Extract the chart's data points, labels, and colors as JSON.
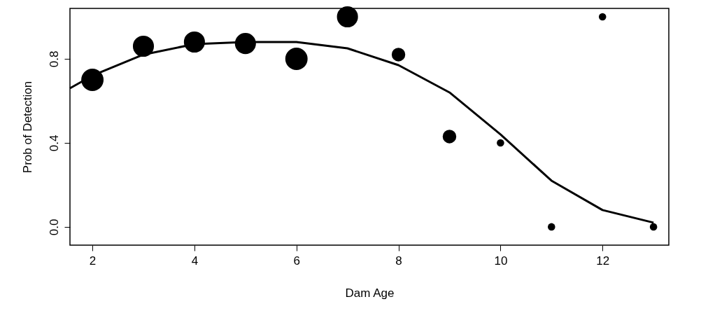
{
  "chart_data": {
    "type": "bubble",
    "xlabel": "Dam Age",
    "ylabel": "Prob of Detection",
    "xlim": [
      1.56,
      13.3
    ],
    "ylim": [
      -0.087,
      1.04
    ],
    "xticks": [
      2,
      4,
      6,
      8,
      10,
      12
    ],
    "yticks": [
      {
        "value": 0,
        "label": "0.0"
      },
      {
        "value": 0.4,
        "label": "0.4"
      },
      {
        "value": 0.8,
        "label": "0.8"
      }
    ],
    "grid": false,
    "legend": false,
    "series": [
      {
        "marker": "circle",
        "color": "#000000",
        "x": [
          2,
          3,
          4,
          5,
          6,
          7,
          8,
          9,
          10,
          11,
          12,
          13
        ],
        "values": [
          0.7,
          0.86,
          0.88,
          0.873,
          0.8,
          1.0,
          0.82,
          0.43,
          0.4,
          0.0,
          1.0,
          0.0
        ],
        "sizes": [
          1,
          0.89,
          0.89,
          0.89,
          1,
          0.89,
          0.37,
          0.37,
          0.11,
          0.11,
          0.11,
          0.11
        ]
      },
      {
        "type": "line",
        "color": "#000000",
        "line_style": "solid",
        "x": [
          1.56,
          2,
          3,
          4,
          5,
          6,
          7,
          8,
          9,
          10,
          11,
          12,
          13
        ],
        "values": [
          0.66,
          0.72,
          0.82,
          0.87,
          0.88,
          0.88,
          0.85,
          0.77,
          0.64,
          0.44,
          0.22,
          0.08,
          0.02
        ]
      }
    ]
  }
}
